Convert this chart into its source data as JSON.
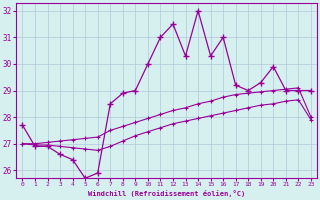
{
  "xlabel": "Windchill (Refroidissement éolien,°C)",
  "xlim": [
    -0.5,
    23.5
  ],
  "ylim": [
    25.7,
    32.3
  ],
  "yticks": [
    26,
    27,
    28,
    29,
    30,
    31,
    32
  ],
  "xticks": [
    0,
    1,
    2,
    3,
    4,
    5,
    6,
    7,
    8,
    9,
    10,
    11,
    12,
    13,
    14,
    15,
    16,
    17,
    18,
    19,
    20,
    21,
    22,
    23
  ],
  "bg_color": "#d6f0f0",
  "grid_color": "#b0c8d8",
  "line_color": "#990099",
  "line1_x": [
    0,
    1,
    2,
    3,
    4,
    5,
    6,
    7,
    8,
    9,
    10,
    11,
    12,
    13,
    14,
    15,
    16,
    17,
    18,
    19,
    20,
    21,
    22,
    23
  ],
  "line1_y": [
    27.7,
    26.9,
    26.9,
    26.6,
    26.4,
    25.7,
    25.9,
    28.5,
    28.9,
    29.0,
    30.0,
    31.0,
    31.5,
    30.3,
    32.0,
    30.3,
    31.0,
    29.2,
    29.0,
    29.3,
    29.9,
    29.0,
    29.0,
    29.0
  ],
  "line2_x": [
    0,
    1,
    2,
    3,
    4,
    5,
    6,
    7,
    8,
    9,
    10,
    11,
    12,
    13,
    14,
    15,
    16,
    17,
    18,
    19,
    20,
    21,
    22,
    23
  ],
  "line2_y": [
    27.0,
    27.0,
    27.05,
    27.1,
    27.15,
    27.2,
    27.25,
    27.5,
    27.65,
    27.8,
    27.95,
    28.1,
    28.25,
    28.35,
    28.5,
    28.6,
    28.75,
    28.85,
    28.9,
    28.95,
    29.0,
    29.05,
    29.1,
    28.0
  ],
  "line3_x": [
    0,
    1,
    2,
    3,
    4,
    5,
    6,
    7,
    8,
    9,
    10,
    11,
    12,
    13,
    14,
    15,
    16,
    17,
    18,
    19,
    20,
    21,
    22,
    23
  ],
  "line3_y": [
    27.0,
    26.95,
    26.95,
    26.9,
    26.85,
    26.8,
    26.75,
    26.9,
    27.1,
    27.3,
    27.45,
    27.6,
    27.75,
    27.85,
    27.95,
    28.05,
    28.15,
    28.25,
    28.35,
    28.45,
    28.5,
    28.6,
    28.65,
    27.9
  ]
}
